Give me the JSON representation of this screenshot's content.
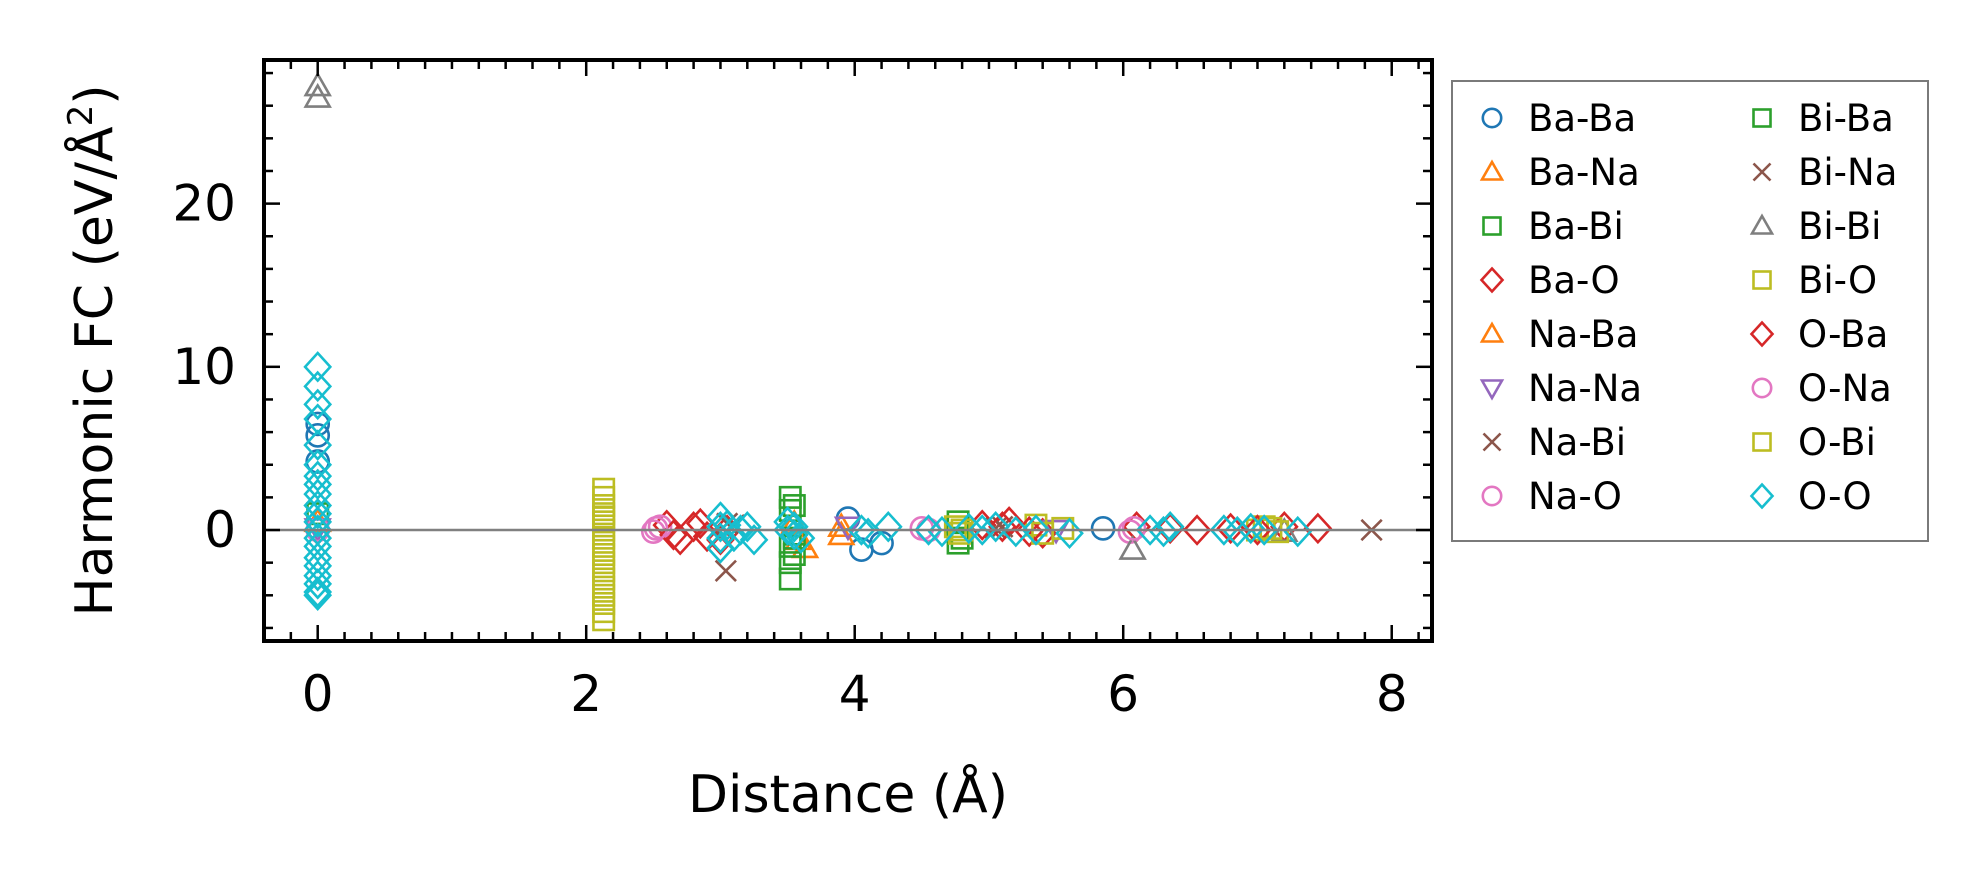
{
  "chart_data": {
    "type": "scatter",
    "xlabel": "Distance (Å)",
    "ylabel_prefix": "Harmonic FC (eV/Å",
    "ylabel_sup": "2",
    "ylabel_suffix": ")",
    "xlim": [
      -0.4,
      8.3
    ],
    "ylim": [
      -6.8,
      28.8
    ],
    "xticks": [
      0,
      2,
      4,
      6,
      8
    ],
    "xtick_labels": [
      "0",
      "2",
      "4",
      "6",
      "8"
    ],
    "yticks": [
      0,
      10,
      20
    ],
    "ytick_labels": [
      "0",
      "10",
      "20"
    ],
    "grid": false,
    "zero_line": true,
    "legend_position": "outside-right",
    "legend_columns": 2,
    "series": [
      {
        "name": "Ba-Ba",
        "marker": "circle",
        "color": "#1f77b4",
        "x": [
          0,
          0,
          0,
          3.95,
          4.05,
          4.2,
          5.85
        ],
        "y": [
          6.5,
          5.8,
          4.2,
          0.7,
          -1.2,
          -0.8,
          0.1
        ]
      },
      {
        "name": "Ba-Na",
        "marker": "triangle-up",
        "color": "#ff7f0e",
        "x": [
          0,
          3.58,
          3.63,
          3.9
        ],
        "y": [
          0.5,
          -0.6,
          -1.1,
          -0.3
        ]
      },
      {
        "name": "Ba-Bi",
        "marker": "square",
        "color": "#2ca02c",
        "x": [
          0,
          3.52,
          3.52,
          3.52,
          3.52,
          3.52,
          4.77,
          4.77
        ],
        "y": [
          1.0,
          2.0,
          1.2,
          -1.0,
          -2.0,
          -3.0,
          0.5,
          -0.8
        ]
      },
      {
        "name": "Ba-O",
        "marker": "diamond",
        "color": "#d62728",
        "x": [
          0,
          2.6,
          2.7,
          2.8,
          2.9,
          3.05,
          4.95,
          5.15,
          5.4,
          6.1,
          6.55,
          6.8,
          7.2,
          7.45
        ],
        "y": [
          0.0,
          0.3,
          -0.6,
          0.2,
          -0.4,
          0.0,
          0.3,
          0.5,
          -0.2,
          0.2,
          0.0,
          0.1,
          0.2,
          0.1
        ]
      },
      {
        "name": "Na-Ba",
        "marker": "triangle-up",
        "color": "#ff7f0e",
        "x": [
          3.55,
          3.9
        ],
        "y": [
          0.4,
          0.2
        ]
      },
      {
        "name": "Na-Na",
        "marker": "triangle-down",
        "color": "#9467bd",
        "x": [
          0,
          3.95,
          5.5
        ],
        "y": [
          0.1,
          0.2,
          0.0
        ]
      },
      {
        "name": "Na-Bi",
        "marker": "x",
        "color": "#8c564b",
        "x": [
          3.04,
          3.1,
          5.05,
          7.85
        ],
        "y": [
          -2.5,
          0.3,
          0.1,
          0.0
        ]
      },
      {
        "name": "Na-O",
        "marker": "circle",
        "color": "#e377c2",
        "x": [
          0,
          2.5,
          2.55,
          4.5,
          6.05
        ],
        "y": [
          0.0,
          -0.1,
          0.2,
          0.1,
          -0.1
        ]
      },
      {
        "name": "Bi-Ba",
        "marker": "square",
        "color": "#2ca02c",
        "x": [
          3.55,
          3.55,
          3.55,
          4.8
        ],
        "y": [
          1.5,
          -0.5,
          -1.5,
          -0.5
        ]
      },
      {
        "name": "Bi-Na",
        "marker": "x",
        "color": "#8c564b",
        "x": [
          3.05,
          5.1
        ],
        "y": [
          0.4,
          0.2
        ]
      },
      {
        "name": "Bi-Bi",
        "marker": "triangle-up",
        "color": "#7f7f7f",
        "x": [
          0,
          0,
          6.07,
          7.2
        ],
        "y": [
          27.2,
          26.5,
          -1.2,
          -0.1
        ]
      },
      {
        "name": "Bi-O",
        "marker": "square",
        "color": "#bcbd22",
        "x": [
          2.13,
          2.13,
          2.13,
          2.13,
          2.13,
          2.13,
          2.13,
          2.13,
          2.13,
          2.13,
          2.13,
          2.13,
          2.13,
          2.13,
          2.13,
          2.13,
          2.13,
          4.75,
          4.8,
          5.35,
          5.55,
          7.0,
          7.05,
          7.15
        ],
        "y": [
          2.5,
          2.0,
          1.5,
          1.0,
          0.5,
          0.0,
          -0.5,
          -1.0,
          -1.5,
          -2.0,
          -2.5,
          -3.0,
          -3.5,
          -4.0,
          -4.5,
          -5.0,
          -5.5,
          0.2,
          0.0,
          0.3,
          0.1,
          0.0,
          0.2,
          -0.1
        ]
      },
      {
        "name": "O-Ba",
        "marker": "diamond",
        "color": "#d62728",
        "x": [
          2.65,
          2.85,
          3.0,
          5.1,
          5.3,
          6.35,
          7.0
        ],
        "y": [
          -0.3,
          0.4,
          -0.6,
          0.2,
          -0.1,
          0.1,
          0.0
        ]
      },
      {
        "name": "O-Na",
        "marker": "circle",
        "color": "#e377c2",
        "x": [
          2.52,
          4.55,
          6.08
        ],
        "y": [
          0.1,
          0.0,
          0.1
        ]
      },
      {
        "name": "O-Bi",
        "marker": "square",
        "color": "#bcbd22",
        "x": [
          2.13,
          4.78,
          5.4,
          7.1
        ],
        "y": [
          0.8,
          -0.2,
          -0.2,
          0.1
        ]
      },
      {
        "name": "O-O",
        "marker": "diamond",
        "color": "#17becf",
        "x": [
          0,
          0,
          0,
          0,
          0,
          0,
          0,
          0,
          0,
          0,
          0,
          0,
          0,
          0,
          0,
          0,
          0,
          0,
          0,
          0,
          0,
          3.0,
          3.0,
          3.0,
          3.0,
          3.05,
          3.1,
          3.15,
          3.2,
          3.25,
          3.5,
          3.5,
          3.55,
          3.55,
          3.6,
          4.05,
          4.1,
          4.25,
          4.55,
          4.65,
          4.85,
          4.95,
          5.05,
          5.2,
          5.35,
          5.6,
          6.2,
          6.3,
          6.35,
          6.75,
          6.85,
          6.95,
          7.05,
          7.3
        ],
        "y": [
          10.0,
          8.8,
          7.7,
          6.8,
          5.2,
          4.0,
          3.3,
          2.8,
          2.2,
          1.5,
          1.0,
          0.5,
          0.0,
          -0.5,
          -1.0,
          -1.7,
          -2.2,
          -2.8,
          -3.3,
          -3.8,
          -4.0,
          0.8,
          0.2,
          -0.5,
          -1.1,
          0.3,
          -0.4,
          0.0,
          0.2,
          -0.6,
          0.5,
          0.0,
          -0.3,
          0.2,
          -0.5,
          0.0,
          -0.2,
          0.2,
          0.0,
          -0.1,
          0.1,
          0.0,
          0.2,
          -0.1,
          0.0,
          -0.2,
          0.0,
          -0.1,
          0.2,
          0.0,
          -0.1,
          0.1,
          0.0,
          -0.1
        ]
      }
    ]
  }
}
